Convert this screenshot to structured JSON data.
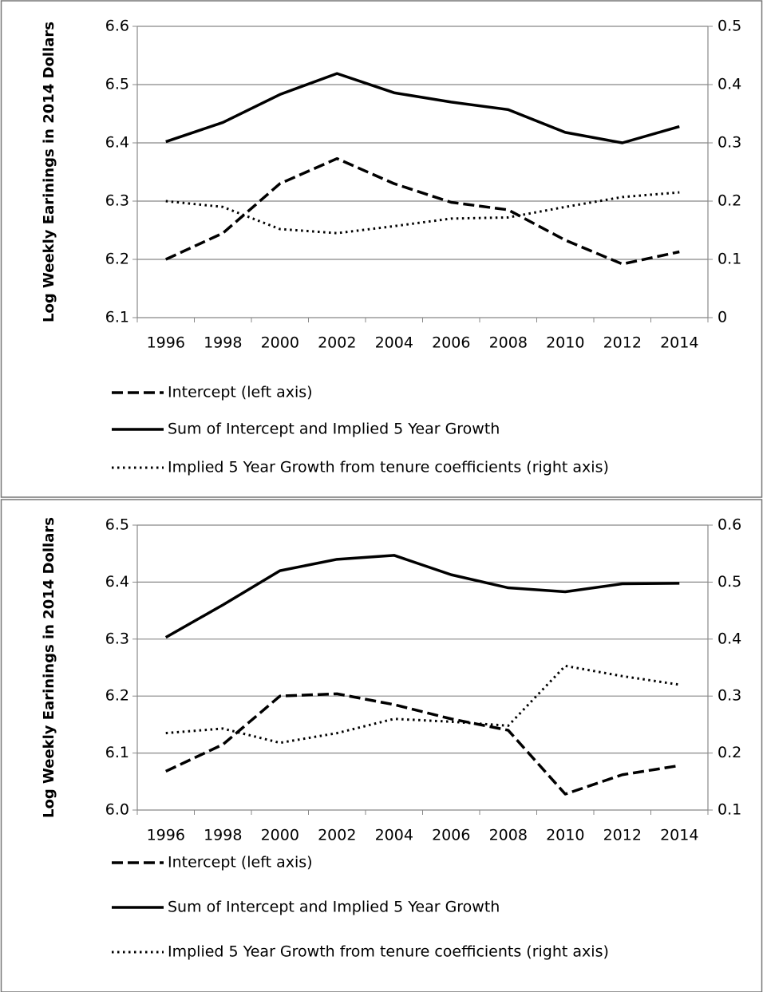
{
  "chart_data": [
    {
      "type": "line",
      "y_label": "Log Weekly Earinings in 2014 Dollars",
      "categories": [
        "1996",
        "1998",
        "2000",
        "2002",
        "2004",
        "2006",
        "2008",
        "2010",
        "2012",
        "2014"
      ],
      "series": [
        {
          "name": "Intercept (left axis)",
          "color": "#000000",
          "line_style": "dashed",
          "values": [
            6.2,
            6.245,
            6.33,
            6.373,
            6.33,
            6.298,
            6.285,
            6.233,
            6.192,
            6.213
          ]
        },
        {
          "name": "Sum of Intercept and Implied 5 Year Growth",
          "color": "#000000",
          "line_style": "solid",
          "values": [
            6.402,
            6.435,
            6.483,
            6.519,
            6.486,
            6.47,
            6.457,
            6.418,
            6.4,
            6.428
          ]
        },
        {
          "name": "Implied 5 Year Growth from tenure coefficients (right axis)",
          "color": "#000000",
          "line_style": "dotted",
          "axis": "y2",
          "values": [
            0.2,
            0.19,
            0.152,
            0.145,
            0.157,
            0.17,
            0.172,
            0.19,
            0.207,
            0.215
          ]
        }
      ],
      "ylim": [
        6.1,
        6.6
      ],
      "yticks": [
        6.1,
        6.2,
        6.3,
        6.4,
        6.5,
        6.6
      ],
      "y2lim": [
        0,
        0.5
      ],
      "y2ticks": [
        0,
        0.1,
        0.2,
        0.3,
        0.4,
        0.5
      ],
      "grid": true
    },
    {
      "type": "line",
      "y_label": "Log Weekly Earinings in 2014 Dollars",
      "categories": [
        "1996",
        "1998",
        "2000",
        "2002",
        "2004",
        "2006",
        "2008",
        "2010",
        "2012",
        "2014"
      ],
      "series": [
        {
          "name": "Intercept (left axis)",
          "color": "#000000",
          "line_style": "dashed",
          "values": [
            6.068,
            6.115,
            6.2,
            6.204,
            6.185,
            6.16,
            6.14,
            6.028,
            6.062,
            6.078
          ]
        },
        {
          "name": "Sum of Intercept and Implied 5 Year Growth",
          "color": "#000000",
          "line_style": "solid",
          "values": [
            6.303,
            6.36,
            6.42,
            6.44,
            6.447,
            6.413,
            6.39,
            6.383,
            6.397,
            6.398
          ]
        },
        {
          "name": "Implied 5 Year Growth from tenure coefficients (right axis)",
          "color": "#000000",
          "line_style": "dotted",
          "axis": "y2",
          "values": [
            0.235,
            0.243,
            0.218,
            0.235,
            0.26,
            0.255,
            0.248,
            0.353,
            0.335,
            0.32
          ]
        }
      ],
      "ylim": [
        6.0,
        6.5
      ],
      "yticks": [
        {
          "value": 6,
          "label": "6.0"
        },
        6.1,
        6.2,
        6.3,
        6.4,
        6.5
      ],
      "y2lim": [
        0.1,
        0.6
      ],
      "y2ticks": [
        0.1,
        0.2,
        0.3,
        0.4,
        0.5,
        0.6
      ],
      "grid": true
    }
  ]
}
